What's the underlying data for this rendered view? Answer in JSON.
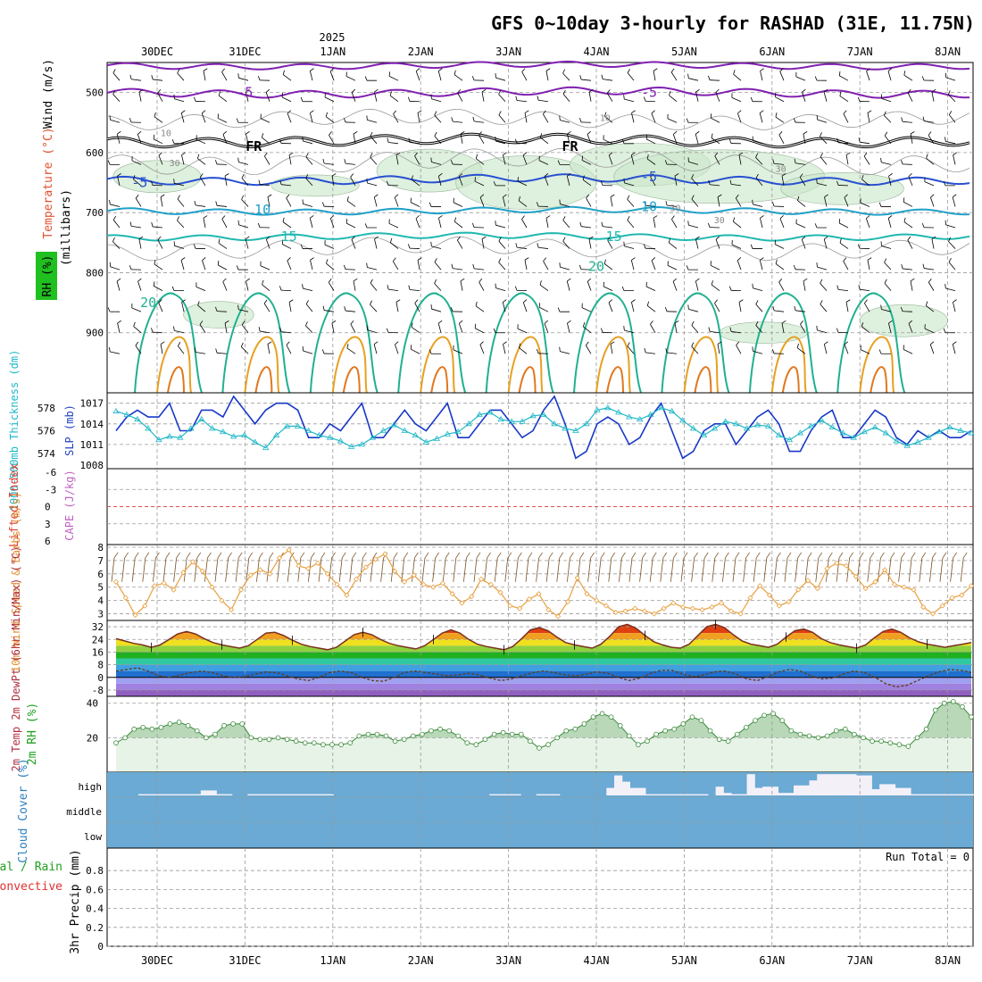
{
  "title": "GFS 0~10day 3-hourly for RASHAD (31E, 11.75N)",
  "year_label": "2025",
  "dates": [
    "30DEC",
    "31DEC",
    "1JAN",
    "2JAN",
    "3JAN",
    "4JAN",
    "5JAN",
    "6JAN",
    "7JAN",
    "8JAN"
  ],
  "run_total": "Run Total = 0",
  "colors": {
    "temp_warm": "#e8a020",
    "temp_teal": "#20b090",
    "temp_cyan": "#20a0c8",
    "temp_blue": "#2850d0",
    "temp_purple": "#8020b0",
    "rh_fill": "#c8e6c8",
    "sfc_temp": "#e05010",
    "slp": "#1838c8",
    "thickness": "#20b8c8",
    "wind_speed": "#e8a040",
    "rh2m": "#58a858",
    "cloud": "#6aaad4"
  },
  "chart_data": [
    {
      "type": "contour",
      "panel": "upper-air",
      "ylabel": "(millibars)",
      "side_labels": [
        "Wind (m/s)",
        "Temperature (°C)",
        "RH (%)"
      ],
      "yticks": [
        500,
        600,
        700,
        800,
        900
      ],
      "ylim": [
        1000,
        450
      ],
      "contour_labels": [
        {
          "text": "-5",
          "p": 500,
          "day": 1.0
        },
        {
          "text": "-5",
          "p": 500,
          "day": 5.6
        },
        {
          "text": "FR",
          "p": 590,
          "day": 1.1
        },
        {
          "text": "FR",
          "p": 590,
          "day": 4.7
        },
        {
          "text": "-5",
          "p": 650,
          "day": -0.2
        },
        {
          "text": "-5",
          "p": 640,
          "day": 5.6
        },
        {
          "text": "10",
          "p": 695,
          "day": 1.2
        },
        {
          "text": "10",
          "p": 690,
          "day": 5.6
        },
        {
          "text": "15",
          "p": 740,
          "day": 1.5
        },
        {
          "text": "15",
          "p": 740,
          "day": 5.2
        },
        {
          "text": "20",
          "p": 790,
          "day": 5.0
        },
        {
          "text": "20",
          "p": 850,
          "day": -0.1
        },
        {
          "text": "10",
          "p": 540,
          "day": 5.1
        },
        {
          "text": "10",
          "p": 565,
          "day": 0.1
        },
        {
          "text": "30",
          "p": 615,
          "day": 0.2
        },
        {
          "text": "30",
          "p": 690,
          "day": 5.9
        },
        {
          "text": "30",
          "p": 710,
          "day": 6.4
        },
        {
          "text": "30",
          "p": 625,
          "day": 7.1
        }
      ]
    },
    {
      "type": "line",
      "panel": "slp-thickness",
      "ylabel_left": "1000-500mb Thickness (dm)",
      "ylabel_right": "SLP (mb)",
      "yticks_left": [
        574,
        576,
        578
      ],
      "yticks_right": [
        1008,
        1011,
        1014,
        1017
      ],
      "series": [
        {
          "name": "SLP",
          "values": [
            1013,
            1015,
            1016,
            1015,
            1015,
            1017,
            1013,
            1013,
            1016,
            1016,
            1015,
            1018,
            1016,
            1014,
            1016,
            1017,
            1017,
            1016,
            1012,
            1012,
            1014,
            1013,
            1015,
            1017,
            1012,
            1012,
            1014,
            1016,
            1014,
            1013,
            1015,
            1017,
            1012,
            1012,
            1014,
            1016,
            1016,
            1014,
            1012,
            1013,
            1016,
            1018,
            1014,
            1009,
            1010,
            1014,
            1015,
            1014,
            1011,
            1012,
            1015,
            1017,
            1013,
            1009,
            1010,
            1013,
            1014,
            1014,
            1011,
            1013,
            1015,
            1016,
            1014,
            1010,
            1010,
            1013,
            1015,
            1016,
            1012,
            1012,
            1014,
            1016,
            1015,
            1012,
            1011,
            1013,
            1012,
            1013,
            1012,
            1012,
            1013
          ]
        },
        {
          "name": "Thickness",
          "values": [
            577.7,
            577.4,
            577.0,
            576.2,
            575.2,
            575.5,
            575.4,
            576.2,
            577.0,
            576.2,
            575.9,
            575.5,
            575.6,
            575.0,
            574.5,
            575.6,
            576.4,
            576.4,
            576.0,
            575.6,
            575.4,
            575.1,
            574.6,
            574.8,
            575.4,
            576.0,
            576.5,
            576.0,
            575.6,
            575.0,
            575.3,
            575.7,
            575.9,
            576.6,
            577.4,
            577.6,
            577.0,
            576.8,
            576.8,
            577.3,
            577.4,
            576.6,
            576.2,
            576.0,
            576.6,
            577.8,
            578.0,
            577.6,
            577.2,
            577.0,
            577.4,
            578.0,
            577.7,
            576.9,
            576.2,
            575.6,
            576.2,
            576.8,
            576.6,
            576.2,
            576.5,
            576.4,
            575.6,
            575.2,
            575.8,
            576.4,
            576.9,
            576.3,
            575.8,
            575.4,
            575.9,
            576.3,
            575.8,
            575.1,
            574.7,
            575.0,
            575.4,
            575.9,
            576.3,
            576.0,
            575.8
          ]
        }
      ]
    },
    {
      "type": "line",
      "panel": "cape-li",
      "ylabel_left": "Lifted Index",
      "ylabel_right": "CAPE (J/kg)",
      "yticks": [
        "-6",
        "-3",
        "0",
        "3",
        "6"
      ],
      "series": [
        {
          "name": "Lifted Index",
          "values": []
        },
        {
          "name": "CAPE",
          "values": []
        }
      ]
    },
    {
      "type": "line",
      "panel": "10m-wind",
      "ylabel": "10m Wind Speed & Barbs (m/s)",
      "yticks": [
        3,
        4,
        5,
        6,
        7,
        8
      ],
      "ylim": [
        2.5,
        8.2
      ],
      "series": [
        {
          "name": "10m Wind Speed",
          "values": [
            5.4,
            4.2,
            2.9,
            3.6,
            5.1,
            5.3,
            4.8,
            6.1,
            6.9,
            6.2,
            5.0,
            4.0,
            3.3,
            4.8,
            5.9,
            6.3,
            6.0,
            7.2,
            7.8,
            6.6,
            6.4,
            6.8,
            6.0,
            5.2,
            4.4,
            5.6,
            6.5,
            7.1,
            7.5,
            6.2,
            5.4,
            5.9,
            5.2,
            5.0,
            5.3,
            4.5,
            3.8,
            4.3,
            5.6,
            5.2,
            4.6,
            3.6,
            3.4,
            4.1,
            4.5,
            3.3,
            2.8,
            3.9,
            5.7,
            4.5,
            4.0,
            3.6,
            3.1,
            3.2,
            3.4,
            3.2,
            3.0,
            3.4,
            3.8,
            3.5,
            3.4,
            3.3,
            3.5,
            3.8,
            3.2,
            3.0,
            4.2,
            5.1,
            4.4,
            3.6,
            3.9,
            4.8,
            5.5,
            4.9,
            6.4,
            6.8,
            6.6,
            5.8,
            4.9,
            5.4,
            6.3,
            5.2,
            5.0,
            4.8,
            3.5,
            3.0,
            3.6,
            4.2,
            4.4,
            5.1
          ]
        }
      ]
    },
    {
      "type": "area",
      "panel": "2m-temp",
      "ylabel": "2m Temp 2m DewPt (6hr Min/Max) (°C)",
      "yticks": [
        32,
        24,
        16,
        8,
        0,
        -8
      ],
      "ylim": [
        -12,
        36
      ],
      "series": [
        {
          "name": "2m Temp",
          "values": [
            24.5,
            23.0,
            21.5,
            20.5,
            19.0,
            20.5,
            24.0,
            27.5,
            29.0,
            27.5,
            24.5,
            22.0,
            20.5,
            19.5,
            18.5,
            20.0,
            24.0,
            28.0,
            28.5,
            26.5,
            23.5,
            21.0,
            19.5,
            18.5,
            17.5,
            19.0,
            23.0,
            27.0,
            28.5,
            27.0,
            24.0,
            21.5,
            20.0,
            19.0,
            18.0,
            20.0,
            24.0,
            28.0,
            30.0,
            28.0,
            24.0,
            21.0,
            19.5,
            18.5,
            17.5,
            19.5,
            24.5,
            30.0,
            31.5,
            29.5,
            25.5,
            22.0,
            20.5,
            19.5,
            18.5,
            21.0,
            26.0,
            32.0,
            33.5,
            31.0,
            26.5,
            22.5,
            20.5,
            19.0,
            18.5,
            21.0,
            26.5,
            32.0,
            33.5,
            31.5,
            27.0,
            23.0,
            21.0,
            20.0,
            19.0,
            21.0,
            25.5,
            29.5,
            30.5,
            28.5,
            24.5,
            22.0,
            20.5,
            19.5,
            18.5,
            20.5,
            25.0,
            29.0,
            30.5,
            28.5,
            25.0,
            22.5,
            21.0,
            20.0,
            19.0,
            20.0,
            21.0,
            22.0
          ]
        },
        {
          "name": "2m DewPt",
          "values": [
            4.0,
            5.0,
            6.0,
            4.0,
            1.0,
            0.0,
            1.5,
            3.0,
            4.0,
            3.0,
            1.0,
            0.0,
            0.5,
            2.0,
            3.5,
            3.0,
            1.0,
            -1.0,
            -2.0,
            0.0,
            3.0,
            4.0,
            3.0,
            0.0,
            -2.0,
            -2.5,
            0.0,
            3.0,
            4.0,
            3.0,
            2.0,
            1.0,
            1.5,
            2.5,
            1.5,
            -0.5,
            -2.0,
            -1.0,
            1.0,
            3.0,
            4.0,
            3.0,
            1.5,
            1.0,
            2.0,
            3.5,
            2.5,
            0.0,
            -2.0,
            -0.5,
            2.5,
            4.5,
            4.5,
            2.0,
            0.5,
            1.5,
            3.5,
            4.0,
            2.0,
            -1.0,
            -2.0,
            0.5,
            3.5,
            5.0,
            4.0,
            1.0,
            -1.0,
            -0.5,
            2.0,
            4.0,
            3.0,
            0.0,
            -4.0,
            -6.0,
            -5.0,
            -2.0,
            1.0,
            3.5,
            5.0,
            4.5,
            3.0
          ]
        }
      ]
    },
    {
      "type": "area",
      "panel": "2m-rh",
      "ylabel": "2m RH (%)",
      "yticks": [
        20,
        40
      ],
      "ylim": [
        0,
        44
      ],
      "series": [
        {
          "name": "2m RH",
          "values": [
            17,
            20,
            25,
            26,
            25,
            26,
            28,
            29,
            27,
            24,
            20,
            22,
            27,
            28,
            28,
            20,
            19,
            19,
            20,
            19,
            18,
            17,
            17,
            16,
            16,
            16,
            17,
            21,
            22,
            22,
            21,
            18,
            19,
            21,
            22,
            24,
            25,
            24,
            21,
            17,
            16,
            19,
            22,
            23,
            22,
            22,
            18,
            14,
            16,
            20,
            24,
            25,
            28,
            32,
            34,
            32,
            27,
            21,
            16,
            18,
            22,
            24,
            25,
            28,
            32,
            30,
            24,
            19,
            18,
            22,
            26,
            30,
            33,
            34,
            30,
            24,
            22,
            21,
            20,
            21,
            24,
            25,
            22,
            20,
            18,
            18,
            17,
            16,
            15,
            20,
            25,
            36,
            40,
            41,
            38,
            32
          ]
        }
      ]
    },
    {
      "type": "bar",
      "panel": "cloud-cover",
      "ylabel": "Cloud Cover (%)",
      "levels": [
        "high",
        "middle",
        "low"
      ],
      "series": [
        {
          "name": "high",
          "values": [
            0,
            0,
            0,
            0,
            5,
            5,
            5,
            5,
            5,
            5,
            5,
            5,
            20,
            20,
            5,
            5,
            0,
            0,
            5,
            5,
            5,
            5,
            5,
            5,
            5,
            5,
            5,
            5,
            5,
            0,
            0,
            0,
            0,
            0,
            0,
            0,
            0,
            0,
            0,
            0,
            0,
            0,
            0,
            0,
            0,
            0,
            0,
            0,
            0,
            5,
            5,
            5,
            5,
            0,
            0,
            5,
            5,
            5,
            0,
            0,
            0,
            0,
            0,
            0,
            30,
            80,
            55,
            30,
            30,
            5,
            5,
            5,
            5,
            5,
            5,
            5,
            5,
            0,
            35,
            10,
            5,
            5,
            85,
            30,
            35,
            35,
            10,
            10,
            40,
            40,
            60,
            85,
            85,
            85,
            85,
            85,
            80,
            80,
            25,
            45,
            45,
            30,
            30,
            5,
            5,
            5,
            5,
            5,
            5,
            5,
            5
          ]
        },
        {
          "name": "middle",
          "values": []
        },
        {
          "name": "low",
          "values": []
        }
      ]
    },
    {
      "type": "bar",
      "panel": "precip",
      "ylabel": "3hr Precip (mm)",
      "side_labels": [
        "Total / Rain",
        "Convective"
      ],
      "yticks": [
        0,
        0.2,
        0.4,
        0.6,
        0.8
      ],
      "ylim": [
        0,
        1
      ],
      "series": [
        {
          "name": "Total / Rain",
          "values": []
        },
        {
          "name": "Convective",
          "values": []
        }
      ]
    }
  ]
}
